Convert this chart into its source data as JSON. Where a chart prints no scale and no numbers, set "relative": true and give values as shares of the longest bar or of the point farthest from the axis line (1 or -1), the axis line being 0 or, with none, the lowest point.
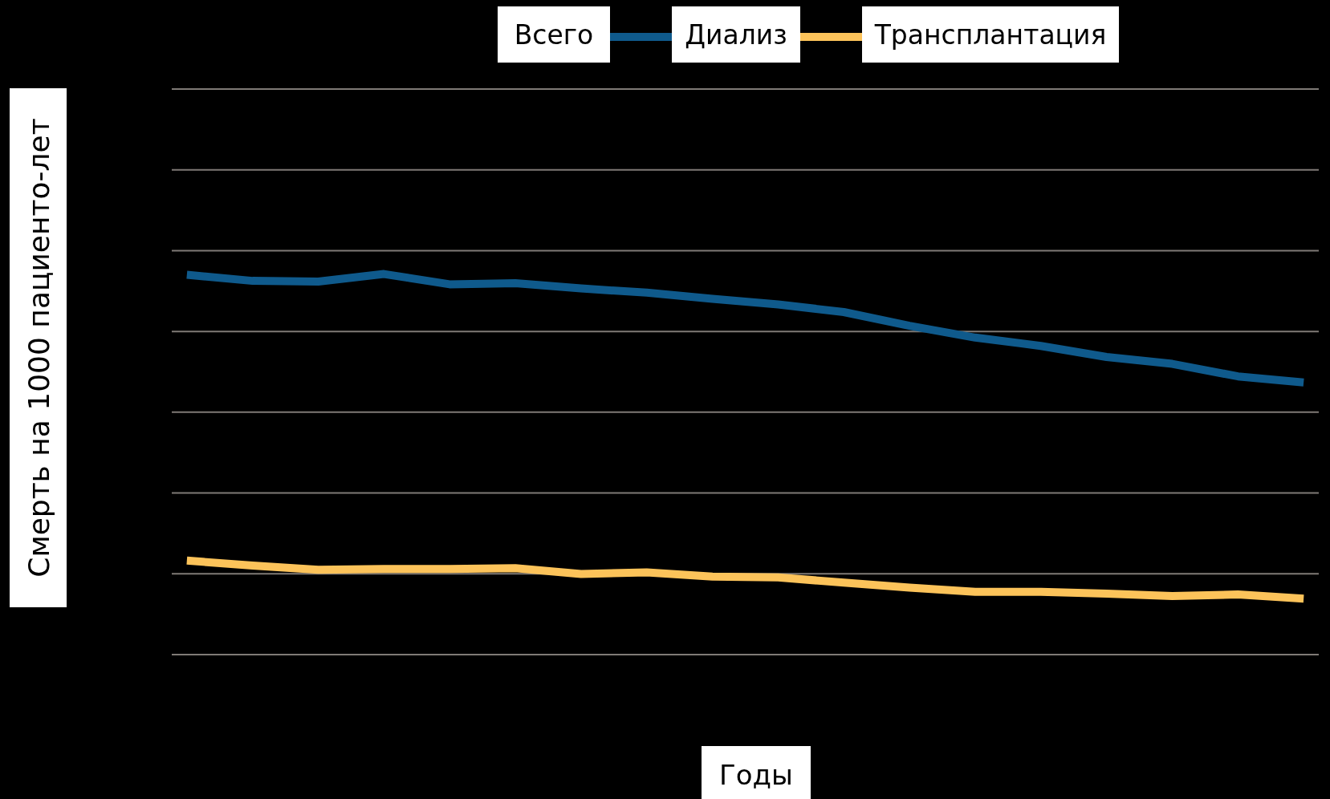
{
  "chart_data": {
    "type": "line",
    "relative": true,
    "xlabel": "Годы",
    "ylabel": "Смерть на 1000 пациенто-лет",
    "categories": [
      null,
      null,
      null,
      null,
      null,
      null,
      null,
      null,
      null,
      null,
      null,
      null,
      null,
      null,
      null,
      null,
      null,
      null
    ],
    "series": [
      {
        "name": "Всего",
        "color": "#000000",
        "values": [
          null,
          null,
          null,
          null,
          null,
          null,
          null,
          null,
          null,
          null,
          null,
          null,
          null,
          null,
          null,
          null,
          null,
          null
        ]
      },
      {
        "name": "Диализ",
        "color": "#0f5a8c",
        "values": [
          0.998,
          0.982,
          0.98,
          1,
          0.973,
          0.976,
          0.962,
          0.951,
          0.935,
          0.92,
          0.9,
          0.864,
          0.833,
          0.811,
          0.782,
          0.764,
          0.731,
          0.715
        ]
      },
      {
        "name": "Трансплантация",
        "color": "#fcc35a",
        "values": [
          0.247,
          0.234,
          0.223,
          0.225,
          0.225,
          0.227,
          0.212,
          0.216,
          0.205,
          0.203,
          0.189,
          0.176,
          0.165,
          0.165,
          0.16,
          0.154,
          0.158,
          0.147
        ]
      }
    ],
    "grid": "y",
    "legend": "top",
    "line_style": "solid",
    "marker": "none"
  }
}
